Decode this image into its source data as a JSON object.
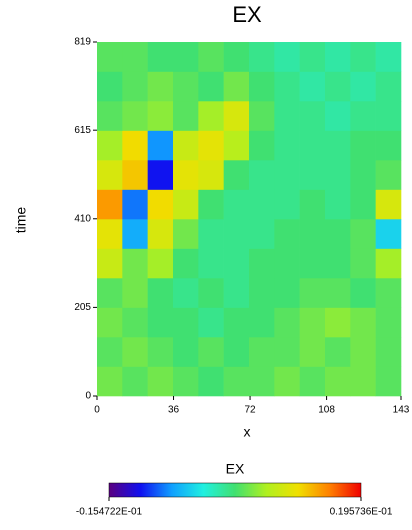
{
  "chart_data": {
    "type": "heatmap",
    "title": "EX",
    "xlabel": "x",
    "ylabel": "time",
    "xlim": [
      0,
      143
    ],
    "ylim": [
      0,
      819
    ],
    "xticks": [
      0,
      36,
      72,
      108,
      143
    ],
    "yticks": [
      0,
      205,
      410,
      615,
      819
    ],
    "z": [
      [
        0.004,
        0.003,
        0.004,
        0.003,
        0.002,
        0.003,
        0.003,
        0.004,
        0.003,
        0.004,
        0.004,
        0.003
      ],
      [
        0.003,
        0.004,
        0.003,
        0.002,
        0.003,
        0.002,
        0.003,
        0.003,
        0.004,
        0.003,
        0.004,
        0.003
      ],
      [
        0.004,
        0.003,
        0.002,
        0.002,
        0.001,
        0.002,
        0.002,
        0.003,
        0.004,
        0.005,
        0.004,
        0.003
      ],
      [
        0.003,
        0.004,
        0.002,
        0.001,
        0.002,
        0.001,
        0.002,
        0.002,
        0.003,
        0.003,
        0.002,
        0.003
      ],
      [
        0.008,
        0.004,
        0.006,
        0.002,
        0.001,
        0.001,
        0.002,
        0.002,
        0.002,
        0.002,
        0.003,
        0.006
      ],
      [
        0.01,
        -0.006,
        0.009,
        0.004,
        0.001,
        0.001,
        0.001,
        0.002,
        0.002,
        0.002,
        0.003,
        -0.004
      ],
      [
        0.014,
        -0.008,
        0.011,
        0.008,
        0.002,
        0.001,
        0.001,
        0.001,
        0.002,
        0.001,
        0.002,
        0.009
      ],
      [
        0.009,
        0.012,
        -0.011,
        0.01,
        0.009,
        0.002,
        0.001,
        0.001,
        0.001,
        0.001,
        0.002,
        0.003
      ],
      [
        0.006,
        0.011,
        -0.007,
        0.008,
        0.01,
        0.007,
        0.002,
        0.001,
        0.001,
        0.001,
        0.002,
        0.002
      ],
      [
        0.003,
        0.004,
        0.005,
        0.003,
        0.006,
        0.009,
        0.003,
        0.001,
        0.001,
        0.0,
        0.001,
        0.001
      ],
      [
        0.002,
        0.003,
        0.004,
        0.003,
        0.002,
        0.004,
        0.002,
        0.001,
        0.0,
        0.001,
        0.0,
        0.001
      ],
      [
        0.003,
        0.003,
        0.002,
        0.002,
        0.003,
        0.002,
        0.001,
        0.0,
        0.001,
        0.0,
        0.001,
        0.0
      ]
    ],
    "colorscale": [
      "#5a0080",
      "#1010f0",
      "#10a0ff",
      "#20f0e0",
      "#40e070",
      "#b0f020",
      "#f0e000",
      "#ff8000",
      "#f00000"
    ],
    "colorbar": {
      "title": "EX",
      "lim": [
        -0.0154722,
        0.0195736
      ],
      "ticks": [
        {
          "value": -0.0154722,
          "label": "-0.154722E-01"
        },
        {
          "value": 0.0195736,
          "label": "0.195736E-01"
        }
      ]
    }
  }
}
